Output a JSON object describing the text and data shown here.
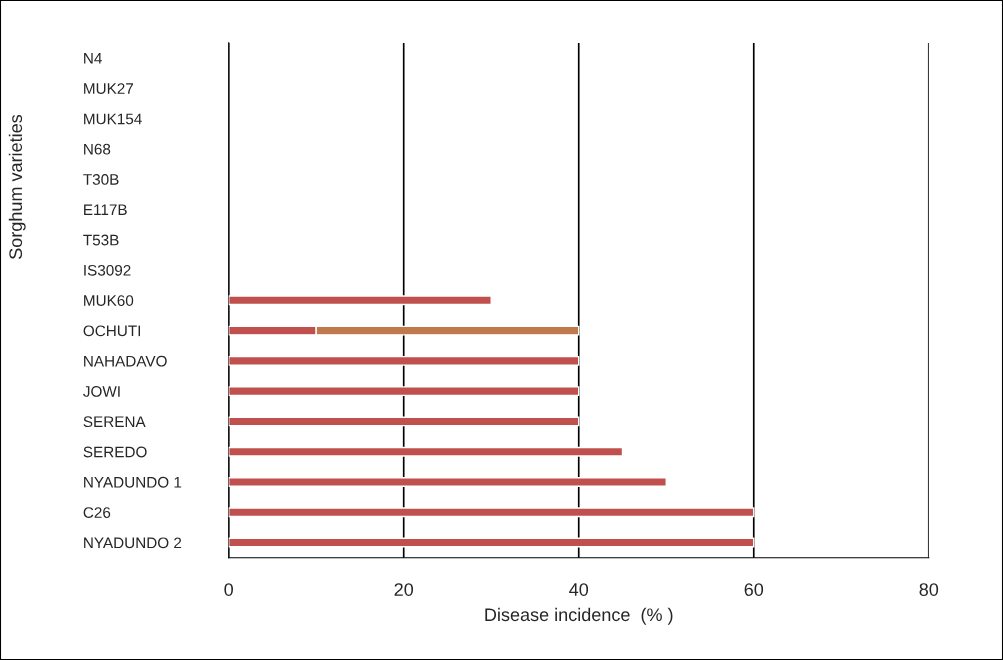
{
  "chart_data": {
    "type": "bar",
    "orientation": "horizontal",
    "stacked": true,
    "xlabel": "Disease incidence  (% )",
    "ylabel": "Sorghum varieties",
    "categories": [
      "N4",
      "MUK27",
      "MUK154",
      "N68",
      "T30B",
      "E117B",
      "T53B",
      "IS3092",
      "MUK60",
      "OCHUTI",
      "NAHADAVO",
      "JOWI",
      "SERENA",
      "SEREDO",
      "NYADUNDO 1",
      "C26",
      "NYADUNDO 2"
    ],
    "series": [
      {
        "color": "#c0504d",
        "values": [
          null,
          null,
          null,
          null,
          null,
          null,
          null,
          null,
          30,
          10,
          40,
          40,
          40,
          45,
          50,
          60,
          60
        ]
      },
      {
        "color": "#c0794d",
        "values": [
          null,
          null,
          null,
          null,
          null,
          null,
          null,
          null,
          null,
          30,
          null,
          null,
          null,
          null,
          null,
          null,
          null
        ]
      }
    ],
    "xlim": [
      0,
      80
    ],
    "xticks": [
      0,
      20,
      40,
      60,
      80
    ],
    "grid": "x",
    "legend": false
  }
}
